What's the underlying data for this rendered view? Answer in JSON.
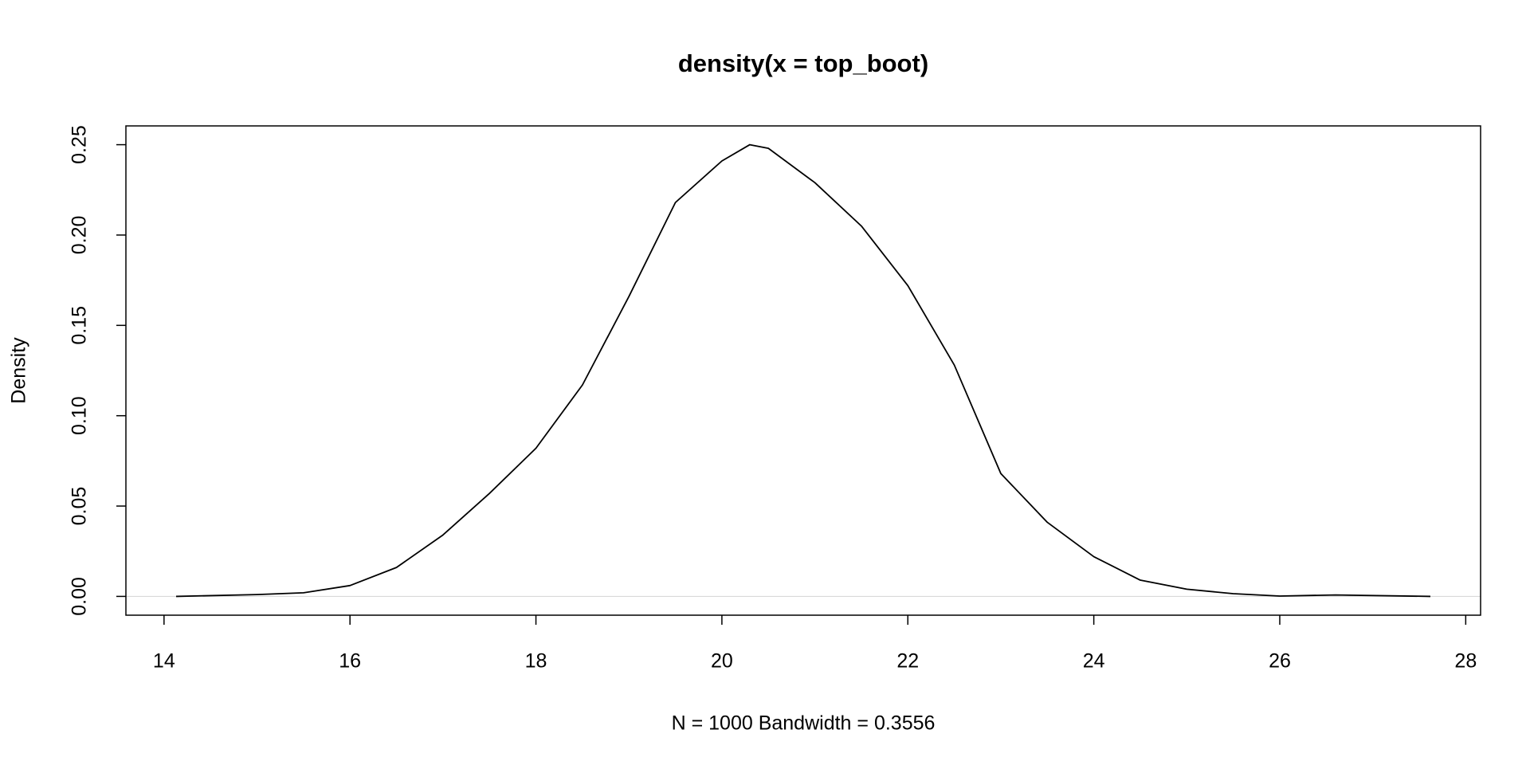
{
  "chart_data": {
    "type": "line",
    "title": "density(x = top_boot)",
    "xlabel": "N = 1000   Bandwidth = 0.3556",
    "ylabel": "Density",
    "x": [
      14.13,
      15,
      15.5,
      16,
      16.5,
      17,
      17.5,
      18,
      18.5,
      19,
      19.5,
      20,
      20.3,
      20.5,
      21,
      21.5,
      22,
      22.5,
      23,
      23.5,
      24,
      24.5,
      25,
      25.5,
      26,
      26.6,
      27.62
    ],
    "series": [
      {
        "name": "density",
        "color": "#000000",
        "values": [
          0,
          0.001,
          0.002,
          0.006,
          0.016,
          0.034,
          0.057,
          0.082,
          0.117,
          0.166,
          0.218,
          0.241,
          0.25,
          0.248,
          0.229,
          0.205,
          0.172,
          0.128,
          0.068,
          0.041,
          0.022,
          0.009,
          0.004,
          0.0015,
          0.0002,
          0.0008,
          0
        ]
      }
    ],
    "xlim": [
      13.59,
      28.16
    ],
    "ylim": [
      -0.0104,
      0.2604
    ],
    "xticks": [
      14,
      16,
      18,
      20,
      22,
      24,
      26,
      28
    ],
    "yticks": [
      {
        "value": 0,
        "label": "0.00"
      },
      {
        "value": 0.05,
        "label": "0.05"
      },
      {
        "value": 0.1,
        "label": "0.10"
      },
      {
        "value": 0.15,
        "label": "0.15"
      },
      {
        "value": 0.2,
        "label": "0.20"
      },
      {
        "value": 0.25,
        "label": "0.25"
      }
    ],
    "hline": 0,
    "hline_color": "#d9d9d9"
  }
}
